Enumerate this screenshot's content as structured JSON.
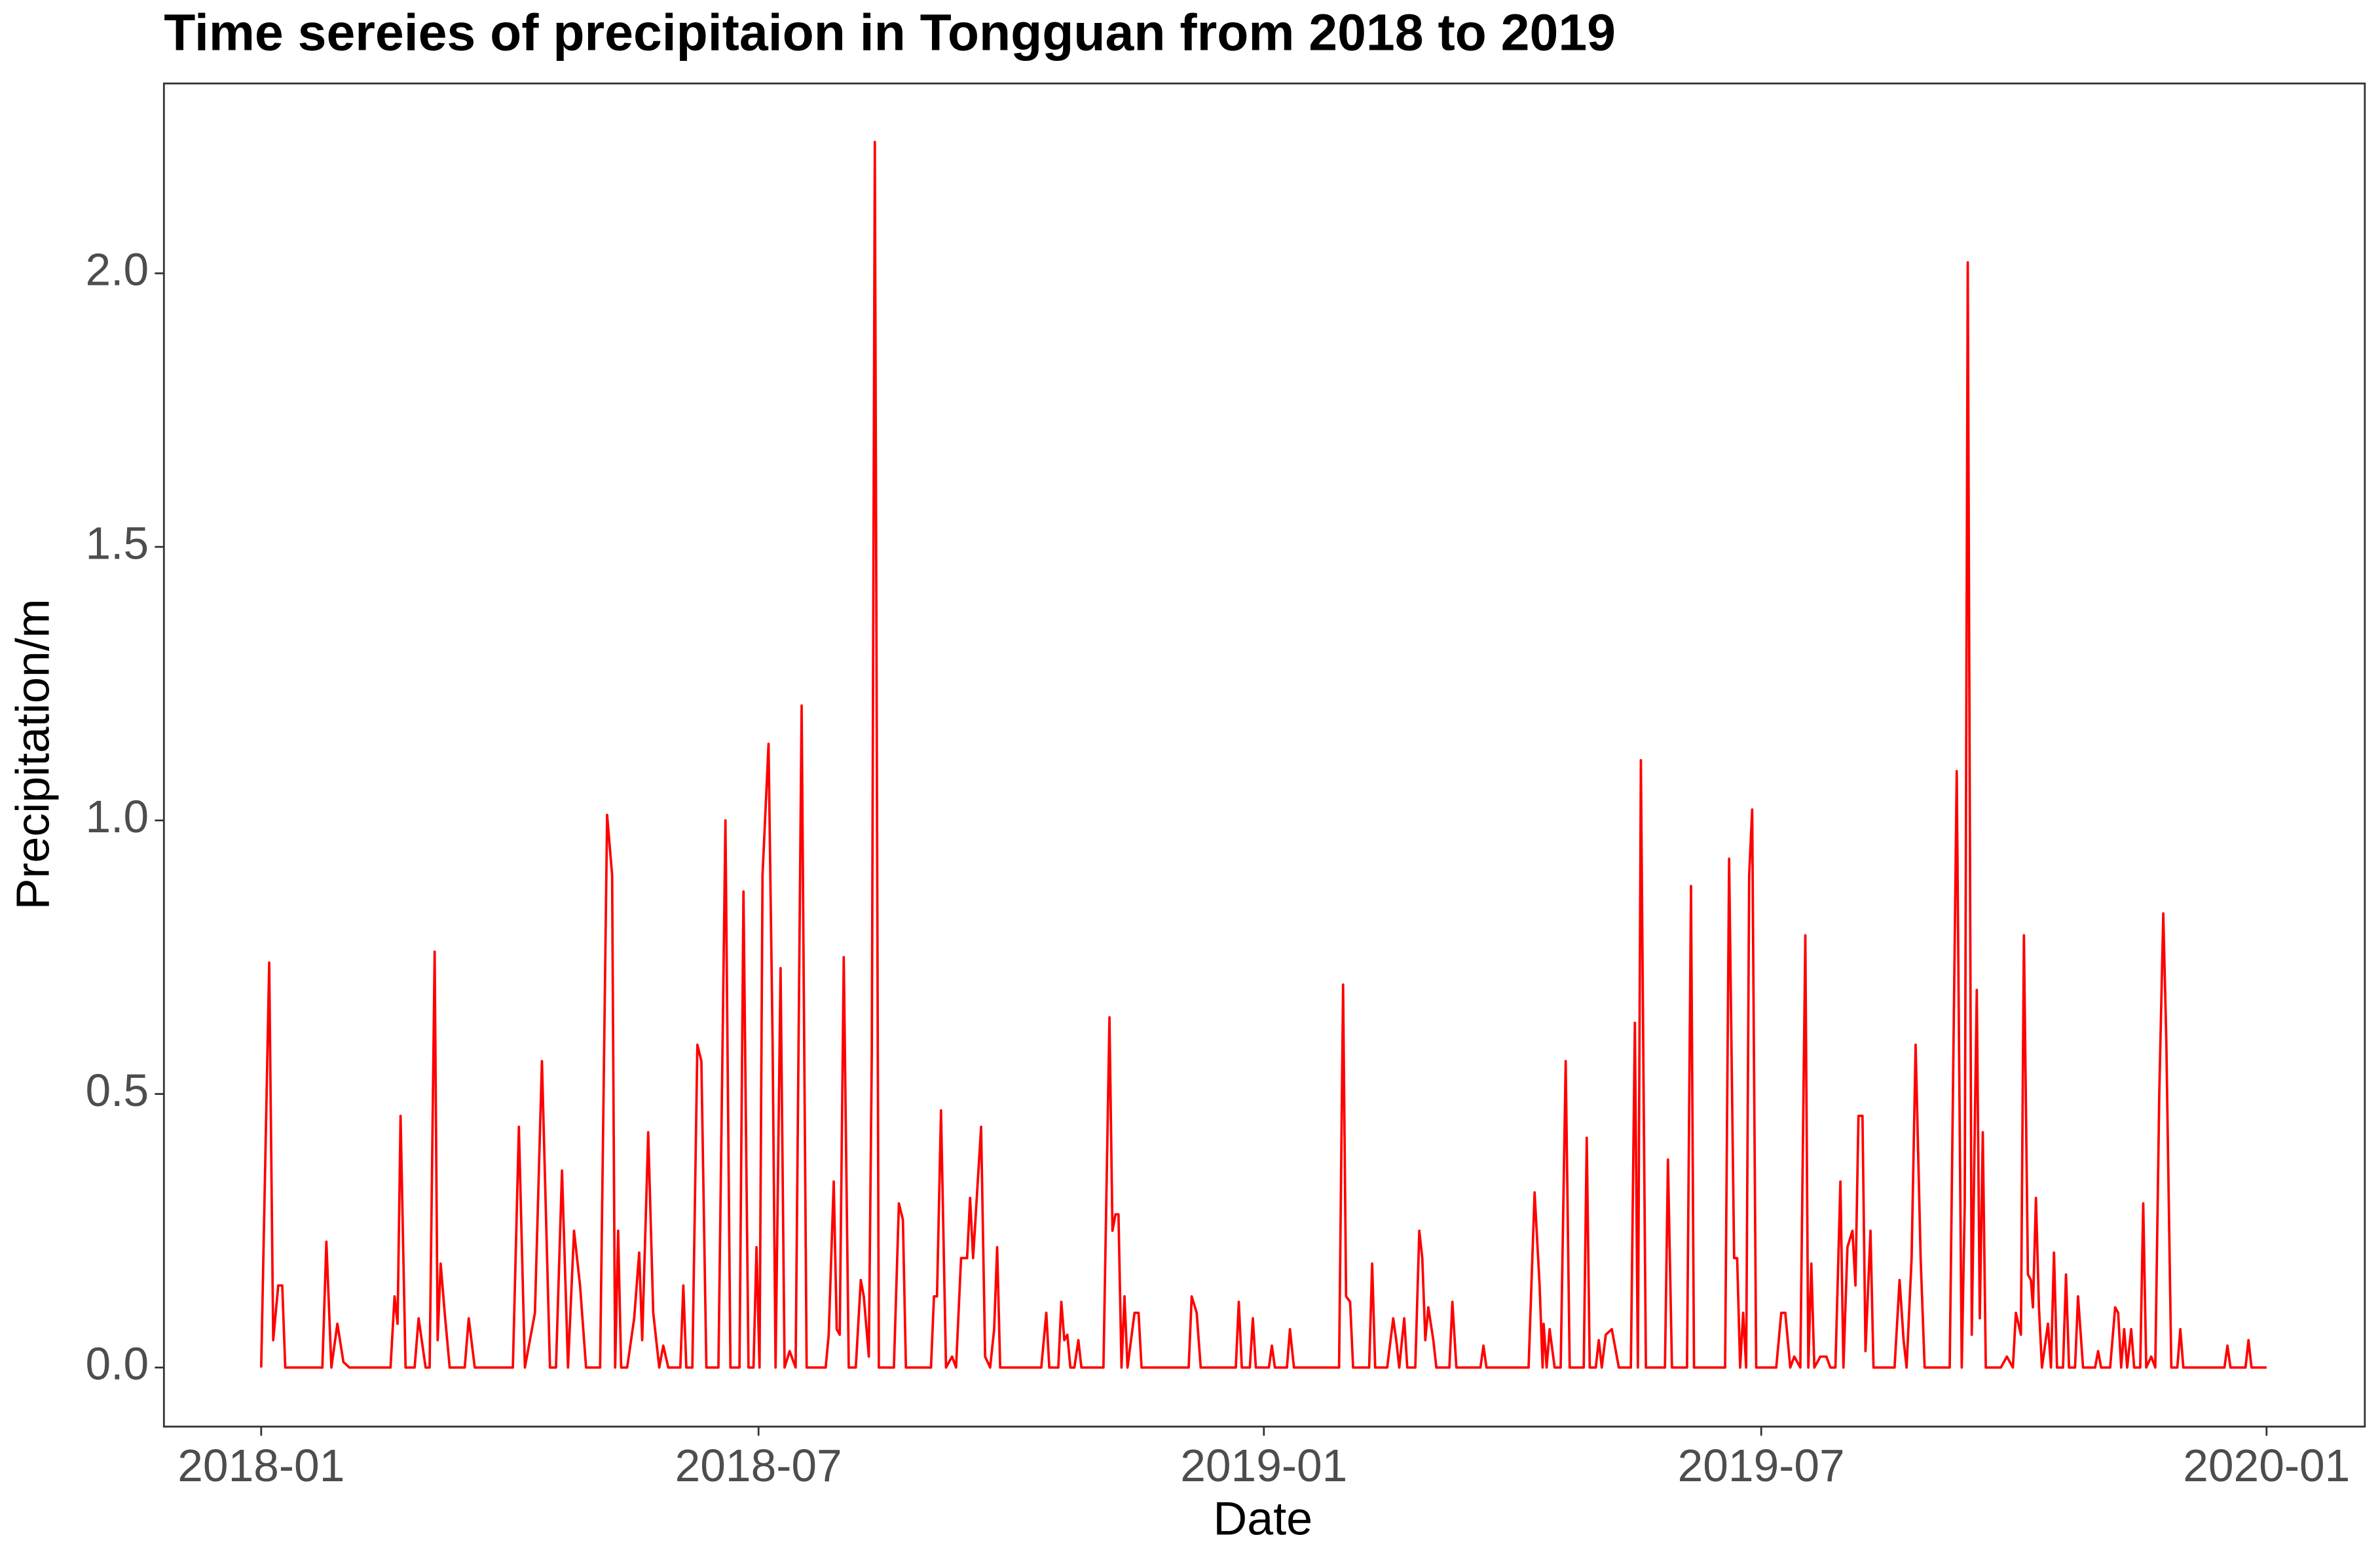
{
  "chart_data": {
    "type": "line",
    "title": "Time sereies of precipitaion in Tongguan from 2018 to 2019",
    "xlabel": "Date",
    "ylabel": "Precipitation/m",
    "color": "#ff0000",
    "xlim": [
      2017.903,
      2020.098
    ],
    "ylim": [
      -0.108,
      2.347
    ],
    "xticks": [
      {
        "value": 2018,
        "label": "2018-01"
      },
      {
        "value": 2018.496,
        "label": "2018-07"
      },
      {
        "value": 2019,
        "label": "2019-01"
      },
      {
        "value": 2019.496,
        "label": "2019-07"
      },
      {
        "value": 2020,
        "label": "2020-01"
      }
    ],
    "yticks": [
      {
        "value": 0,
        "label": "0.0"
      },
      0.5,
      {
        "value": 1,
        "label": "1.0"
      },
      1.5,
      {
        "value": 2,
        "label": "2.0"
      }
    ],
    "grid": false,
    "x": [
      2018.0,
      2018.008,
      2018.012,
      2018.017,
      2018.021,
      2018.024,
      2018.061,
      2018.065,
      2018.07,
      2018.076,
      2018.082,
      2018.088,
      2018.129,
      2018.133,
      2018.136,
      2018.139,
      2018.144,
      2018.153,
      2018.157,
      2018.164,
      2018.168,
      2018.173,
      2018.176,
      2018.179,
      2018.183,
      2018.188,
      2018.203,
      2018.207,
      2018.213,
      2018.251,
      2018.257,
      2018.263,
      2018.273,
      2018.28,
      2018.288,
      2018.294,
      2018.3,
      2018.306,
      2018.312,
      2018.318,
      2018.324,
      2018.338,
      2018.345,
      2018.35,
      2018.353,
      2018.356,
      2018.359,
      2018.365,
      2018.372,
      2018.377,
      2018.38,
      2018.386,
      2018.391,
      2018.397,
      2018.401,
      2018.406,
      2018.418,
      2018.421,
      2018.424,
      2018.43,
      2018.435,
      2018.439,
      2018.444,
      2018.456,
      2018.463,
      2018.468,
      2018.477,
      2018.481,
      2018.486,
      2018.491,
      2018.494,
      2018.497,
      2018.5,
      2018.506,
      2018.51,
      2018.513,
      2018.518,
      2018.522,
      2018.527,
      2018.533,
      2018.539,
      2018.544,
      2018.563,
      2018.566,
      2018.571,
      2018.574,
      2018.577,
      2018.581,
      2018.586,
      2018.593,
      2018.598,
      2018.601,
      2018.606,
      2018.609,
      2018.612,
      2018.616,
      2018.631,
      2018.636,
      2018.64,
      2018.643,
      2018.668,
      2018.671,
      2018.674,
      2018.678,
      2018.683,
      2018.689,
      2018.693,
      2018.698,
      2018.704,
      2018.707,
      2018.71,
      2018.718,
      2018.722,
      2018.727,
      2018.731,
      2018.734,
      2018.737,
      2018.778,
      2018.783,
      2018.786,
      2018.795,
      2018.798,
      2018.801,
      2018.804,
      2018.807,
      2018.811,
      2018.815,
      2018.818,
      2018.84,
      2018.846,
      2018.849,
      2018.852,
      2018.855,
      2018.858,
      2018.861,
      2018.864,
      2018.871,
      2018.875,
      2018.878,
      2018.925,
      2018.928,
      2018.933,
      2018.937,
      2018.972,
      2018.975,
      2018.978,
      2018.986,
      2018.989,
      2018.992,
      2019.005,
      2019.008,
      2019.011,
      2019.023,
      2019.026,
      2019.03,
      2019.075,
      2019.079,
      2019.082,
      2019.086,
      2019.089,
      2019.105,
      2019.108,
      2019.111,
      2019.123,
      2019.129,
      2019.132,
      2019.135,
      2019.14,
      2019.143,
      2019.151,
      2019.155,
      2019.158,
      2019.161,
      2019.164,
      2019.169,
      2019.172,
      2019.185,
      2019.188,
      2019.192,
      2019.216,
      2019.219,
      2019.222,
      2019.264,
      2019.27,
      2019.275,
      2019.278,
      2019.279,
      2019.282,
      2019.285,
      2019.29,
      2019.296,
      2019.301,
      2019.305,
      2019.319,
      2019.322,
      2019.325,
      2019.331,
      2019.334,
      2019.337,
      2019.341,
      2019.347,
      2019.354,
      2019.366,
      2019.37,
      2019.373,
      2019.376,
      2019.381,
      2019.4,
      2019.403,
      2019.407,
      2019.422,
      2019.426,
      2019.429,
      2019.46,
      2019.464,
      2019.469,
      2019.472,
      2019.475,
      2019.478,
      2019.481,
      2019.484,
      2019.487,
      2019.491,
      2019.511,
      2019.516,
      2019.52,
      2019.525,
      2019.529,
      2019.535,
      2019.54,
      2019.543,
      2019.546,
      2019.549,
      2019.555,
      2019.561,
      2019.565,
      2019.57,
      2019.575,
      2019.578,
      2019.582,
      2019.587,
      2019.59,
      2019.593,
      2019.597,
      2019.6,
      2019.605,
      2019.608,
      2019.629,
      2019.634,
      2019.638,
      2019.641,
      2019.646,
      2019.65,
      2019.655,
      2019.659,
      2019.684,
      2019.691,
      2019.696,
      2019.699,
      2019.702,
      2019.706,
      2019.711,
      2019.714,
      2019.717,
      2019.72,
      2019.735,
      2019.741,
      2019.747,
      2019.75,
      2019.755,
      2019.758,
      2019.762,
      2019.765,
      2019.767,
      2019.77,
      2019.773,
      2019.776,
      2019.782,
      2019.785,
      2019.788,
      2019.791,
      2019.797,
      2019.8,
      2019.803,
      2019.809,
      2019.812,
      2019.817,
      2019.829,
      2019.832,
      2019.835,
      2019.844,
      2019.849,
      2019.852,
      2019.855,
      2019.858,
      2019.861,
      2019.865,
      2019.868,
      2019.874,
      2019.877,
      2019.88,
      2019.885,
      2019.889,
      2019.893,
      2019.897,
      2019.9,
      2019.905,
      2019.911,
      2019.914,
      2019.917,
      2019.958,
      2019.961,
      2019.964,
      2019.979,
      2019.982,
      2019.985,
      2020.0
    ],
    "values": [
      0,
      0.74,
      0.05,
      0.15,
      0.15,
      0,
      0,
      0.23,
      0,
      0.08,
      0.01,
      0,
      0,
      0.13,
      0.08,
      0.46,
      0,
      0,
      0.09,
      0,
      0,
      0.76,
      0.05,
      0.19,
      0.1,
      0,
      0,
      0.09,
      0,
      0,
      0.44,
      0,
      0.1,
      0.56,
      0,
      0,
      0.36,
      0,
      0.25,
      0.15,
      0,
      0,
      1.01,
      0.9,
      0,
      0.25,
      0,
      0,
      0.09,
      0.21,
      0.05,
      0.43,
      0.1,
      0,
      0.04,
      0,
      0,
      0.15,
      0,
      0,
      0.59,
      0.56,
      0,
      0,
      1.0,
      0,
      0,
      0.87,
      0,
      0,
      0.22,
      0,
      0.9,
      1.14,
      0.6,
      0,
      0.73,
      0,
      0.03,
      0,
      1.21,
      0,
      0,
      0.06,
      0.34,
      0.07,
      0.06,
      0.75,
      0,
      0,
      0.16,
      0.13,
      0.02,
      0.58,
      2.24,
      0,
      0,
      0.3,
      0.27,
      0,
      0,
      0.13,
      0.13,
      0.47,
      0,
      0.02,
      0,
      0.2,
      0.2,
      0.31,
      0.2,
      0.44,
      0.02,
      0,
      0.07,
      0.22,
      0,
      0,
      0.1,
      0,
      0,
      0.12,
      0.05,
      0.06,
      0,
      0,
      0.05,
      0,
      0,
      0.64,
      0.25,
      0.28,
      0.28,
      0,
      0.13,
      0,
      0.1,
      0.1,
      0,
      0,
      0.13,
      0.1,
      0,
      0,
      0.12,
      0,
      0,
      0.09,
      0,
      0,
      0.04,
      0,
      0,
      0.07,
      0,
      0,
      0.7,
      0.13,
      0.12,
      0,
      0,
      0.19,
      0,
      0,
      0.09,
      0.05,
      0,
      0.09,
      0,
      0,
      0.25,
      0.2,
      0.05,
      0.11,
      0.05,
      0,
      0,
      0.12,
      0,
      0,
      0.04,
      0,
      0,
      0.32,
      0.15,
      0,
      0.08,
      0,
      0.07,
      0,
      0,
      0.56,
      0,
      0,
      0.42,
      0,
      0,
      0.05,
      0,
      0.06,
      0.07,
      0,
      0,
      0.63,
      0,
      1.11,
      0,
      0,
      0.38,
      0,
      0,
      0.88,
      0,
      0,
      0.93,
      0.2,
      0.2,
      0,
      0.1,
      0,
      0.9,
      1.02,
      0,
      0,
      0.1,
      0.1,
      0,
      0.02,
      0,
      0.79,
      0,
      0.19,
      0,
      0.02,
      0.02,
      0,
      0,
      0.34,
      0,
      0.22,
      0.25,
      0.15,
      0.46,
      0.46,
      0.03,
      0.25,
      0,
      0,
      0.16,
      0.05,
      0,
      0.2,
      0.59,
      0.2,
      0,
      0,
      1.09,
      0,
      0.3,
      2.02,
      0.06,
      0.69,
      0.09,
      0.43,
      0,
      0,
      0.02,
      0,
      0.1,
      0.06,
      0.79,
      0.17,
      0.16,
      0.11,
      0.31,
      0.11,
      0,
      0.08,
      0,
      0.21,
      0,
      0,
      0.17,
      0,
      0,
      0.13,
      0,
      0,
      0.03,
      0,
      0,
      0.11,
      0.1,
      0,
      0.07,
      0,
      0.07,
      0,
      0,
      0.3,
      0,
      0.02,
      0,
      0.5,
      0.83,
      0.6,
      0,
      0,
      0.07,
      0,
      0,
      0.04,
      0,
      0,
      0.05,
      0,
      0
    ]
  }
}
